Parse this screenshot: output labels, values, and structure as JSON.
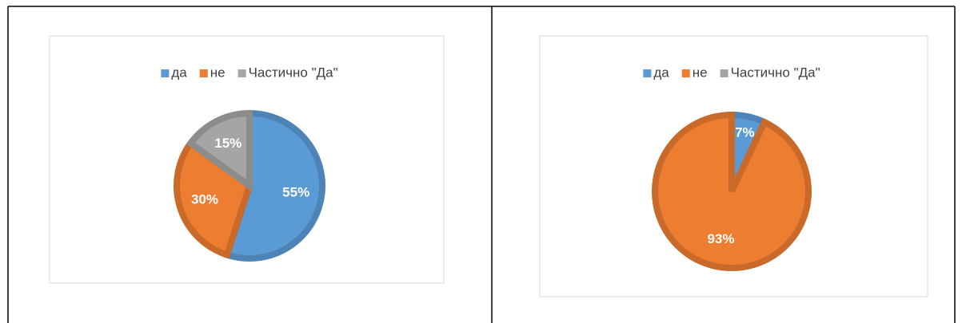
{
  "chart_data": [
    {
      "type": "pie",
      "categories": [
        "да",
        "не",
        "Частично \"Да\""
      ],
      "colors": [
        "#5b9bd5",
        "#ed7d31",
        "#a5a5a5"
      ],
      "values": [
        55,
        30,
        15
      ],
      "value_labels": [
        "55%",
        "30%",
        "15%"
      ]
    },
    {
      "type": "pie",
      "categories": [
        "да",
        "не",
        "Частично \"Да\""
      ],
      "colors": [
        "#5b9bd5",
        "#ed7d31",
        "#a5a5a5"
      ],
      "values": [
        7,
        93,
        0
      ],
      "value_labels": [
        "7%",
        "93%",
        null
      ]
    }
  ]
}
